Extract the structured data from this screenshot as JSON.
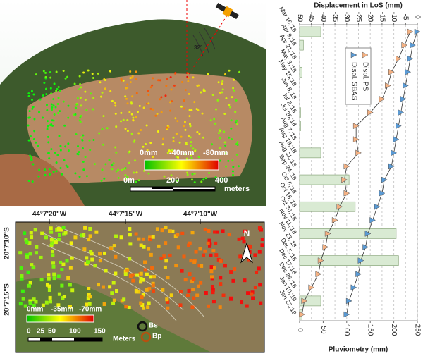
{
  "chart_data": {
    "type": "line",
    "y_label": "Displacement in LoS (mm)",
    "y2_label": "Pluviometry (mm)",
    "categories": [
      "Mar 16,'18",
      "Apr 9,'18",
      "Apr 21,'18",
      "May 3,'18",
      "May 15,'18",
      "Jun 8,'18",
      "Jul 2,'18",
      "Jul 26,'18",
      "Aug 7,'18",
      "Aug 19,'18",
      "Aug 31,'18",
      "Sep 24,'18",
      "Oct 6,'18",
      "Oct 18,'18",
      "Oct 30,'18",
      "Nov 11,'18",
      "Nov 23,'18",
      "Dec 5,'18",
      "Dec 17,'18",
      "Dec 29,'18",
      "Jan 10,'19",
      "Jan 22,'19"
    ],
    "series": [
      {
        "type": "bar",
        "axis": "y2",
        "color": "#d9ead3",
        "values": [
          45,
          8,
          0,
          5,
          0,
          0,
          2,
          2,
          0,
          45,
          0,
          105,
          0,
          118,
          0,
          205,
          0,
          210,
          0,
          0,
          45,
          5
        ]
      },
      {
        "name": "Displ. PSI",
        "color": "#f4b183",
        "values": [
          -3,
          -5.5,
          -8,
          -11,
          -12.5,
          -15,
          -20,
          -26,
          -26,
          -25,
          -30,
          -31,
          -30,
          -33,
          -35,
          -38,
          -39,
          -41,
          -42,
          -45,
          -48,
          -49
        ]
      },
      {
        "name": "Displ. SBAS",
        "color": "#5b9bd5",
        "values": [
          0,
          -2,
          -3,
          -4,
          -5,
          -6,
          -7,
          -8,
          -9,
          -10,
          -11,
          -14,
          -15,
          -17,
          -19,
          -21,
          -22,
          -24,
          -25,
          -27,
          -29,
          -30
        ]
      }
    ],
    "ylim": [
      -50,
      0
    ],
    "yticks": [
      -50,
      -45,
      -40,
      -35,
      -30,
      -25,
      -20,
      -15,
      -10,
      -5,
      0
    ],
    "y2lim": [
      0,
      250
    ],
    "y2ticks": [
      0,
      50,
      100,
      150,
      200,
      250
    ],
    "grid": true
  },
  "maps": {
    "overview": {
      "angle": "32°",
      "colorbar": [
        "0mm",
        "-40mm",
        "-80mm"
      ],
      "scale": [
        "0m",
        "200",
        "400"
      ],
      "scale_unit": "meters"
    },
    "detail": {
      "lon_labels": [
        "44°7'20\"W",
        "44°7'15\"W",
        "44°7'10\"W"
      ],
      "lat_labels": [
        "20°7'10\"S",
        "20°7'15\"S"
      ],
      "north": "N",
      "colorbar": [
        "0mm",
        "-35mm",
        "-70mm"
      ],
      "scale": [
        "0",
        "25",
        "50",
        "100",
        "150"
      ],
      "scale_unit": "Meters",
      "points": [
        "Bs",
        "Bp"
      ]
    }
  }
}
